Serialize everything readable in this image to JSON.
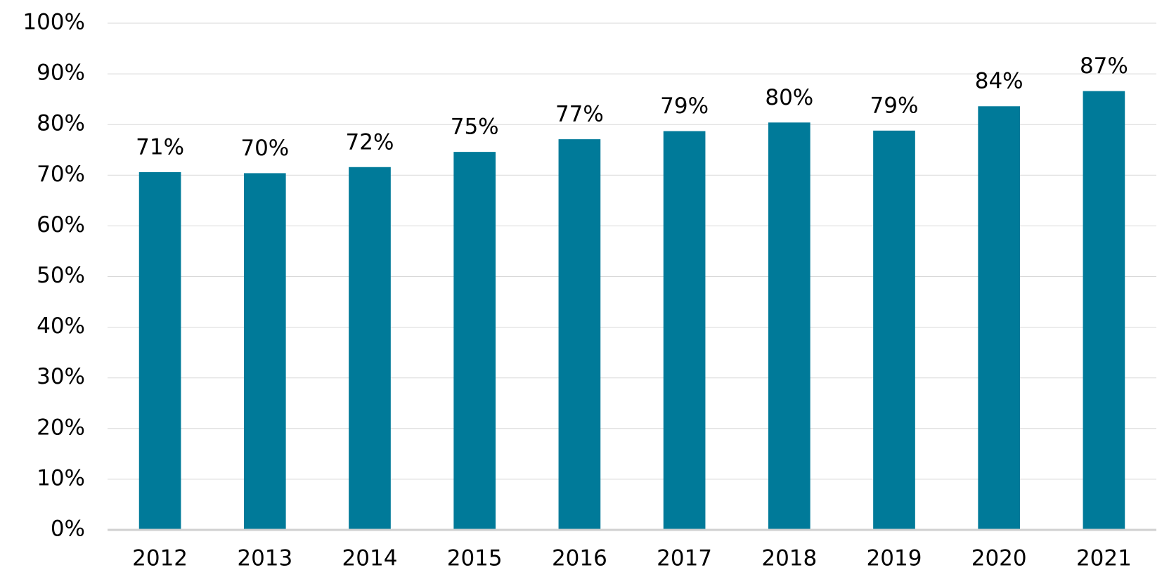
{
  "chart_data": {
    "type": "bar",
    "categories": [
      "2012",
      "2013",
      "2014",
      "2015",
      "2016",
      "2017",
      "2018",
      "2019",
      "2020",
      "2021"
    ],
    "values": [
      70.6,
      70.4,
      71.6,
      74.6,
      77.1,
      78.7,
      80.4,
      78.8,
      83.6,
      86.6
    ],
    "value_labels": [
      "71%",
      "70%",
      "72%",
      "75%",
      "77%",
      "79%",
      "80%",
      "79%",
      "84%",
      "87%"
    ],
    "color": "#007a99",
    "ylim": [
      0,
      100
    ],
    "yticks": [
      {
        "value": 0,
        "label": "0%"
      },
      {
        "value": 10,
        "label": "10%"
      },
      {
        "value": 20,
        "label": "20%"
      },
      {
        "value": 30,
        "label": "30%"
      },
      {
        "value": 40,
        "label": "40%"
      },
      {
        "value": 50,
        "label": "50%"
      },
      {
        "value": 60,
        "label": "60%"
      },
      {
        "value": 70,
        "label": "70%"
      },
      {
        "value": 80,
        "label": "80%"
      },
      {
        "value": 90,
        "label": "90%"
      },
      {
        "value": 100,
        "label": "100%"
      }
    ],
    "grid": true
  }
}
